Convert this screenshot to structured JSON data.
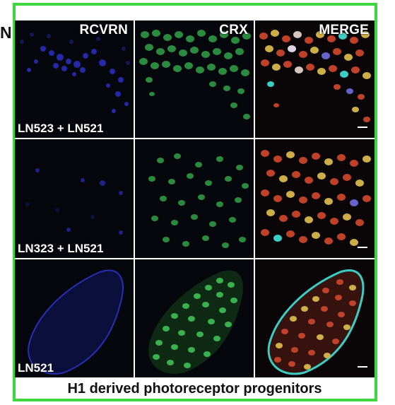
{
  "panel_letter": "N",
  "columns": [
    {
      "label": "RCVRN",
      "channel": "blue"
    },
    {
      "label": "CRX",
      "channel": "green"
    },
    {
      "label": "MERGE",
      "channel": "merge"
    }
  ],
  "rows": [
    {
      "label": "LN523 + LN521"
    },
    {
      "label": "LN323 + LN521"
    },
    {
      "label": "LN521"
    }
  ],
  "caption": "H1 derived photoreceptor progenitors",
  "colors": {
    "frame": "#3fd73f",
    "blue_cells": "#3236d8",
    "green_cells": "#3fbf55",
    "red_cells": "#c8452a",
    "yellow_cells": "#d8b84a",
    "cyan_cells": "#3fd8d0",
    "background": "#05070d"
  }
}
